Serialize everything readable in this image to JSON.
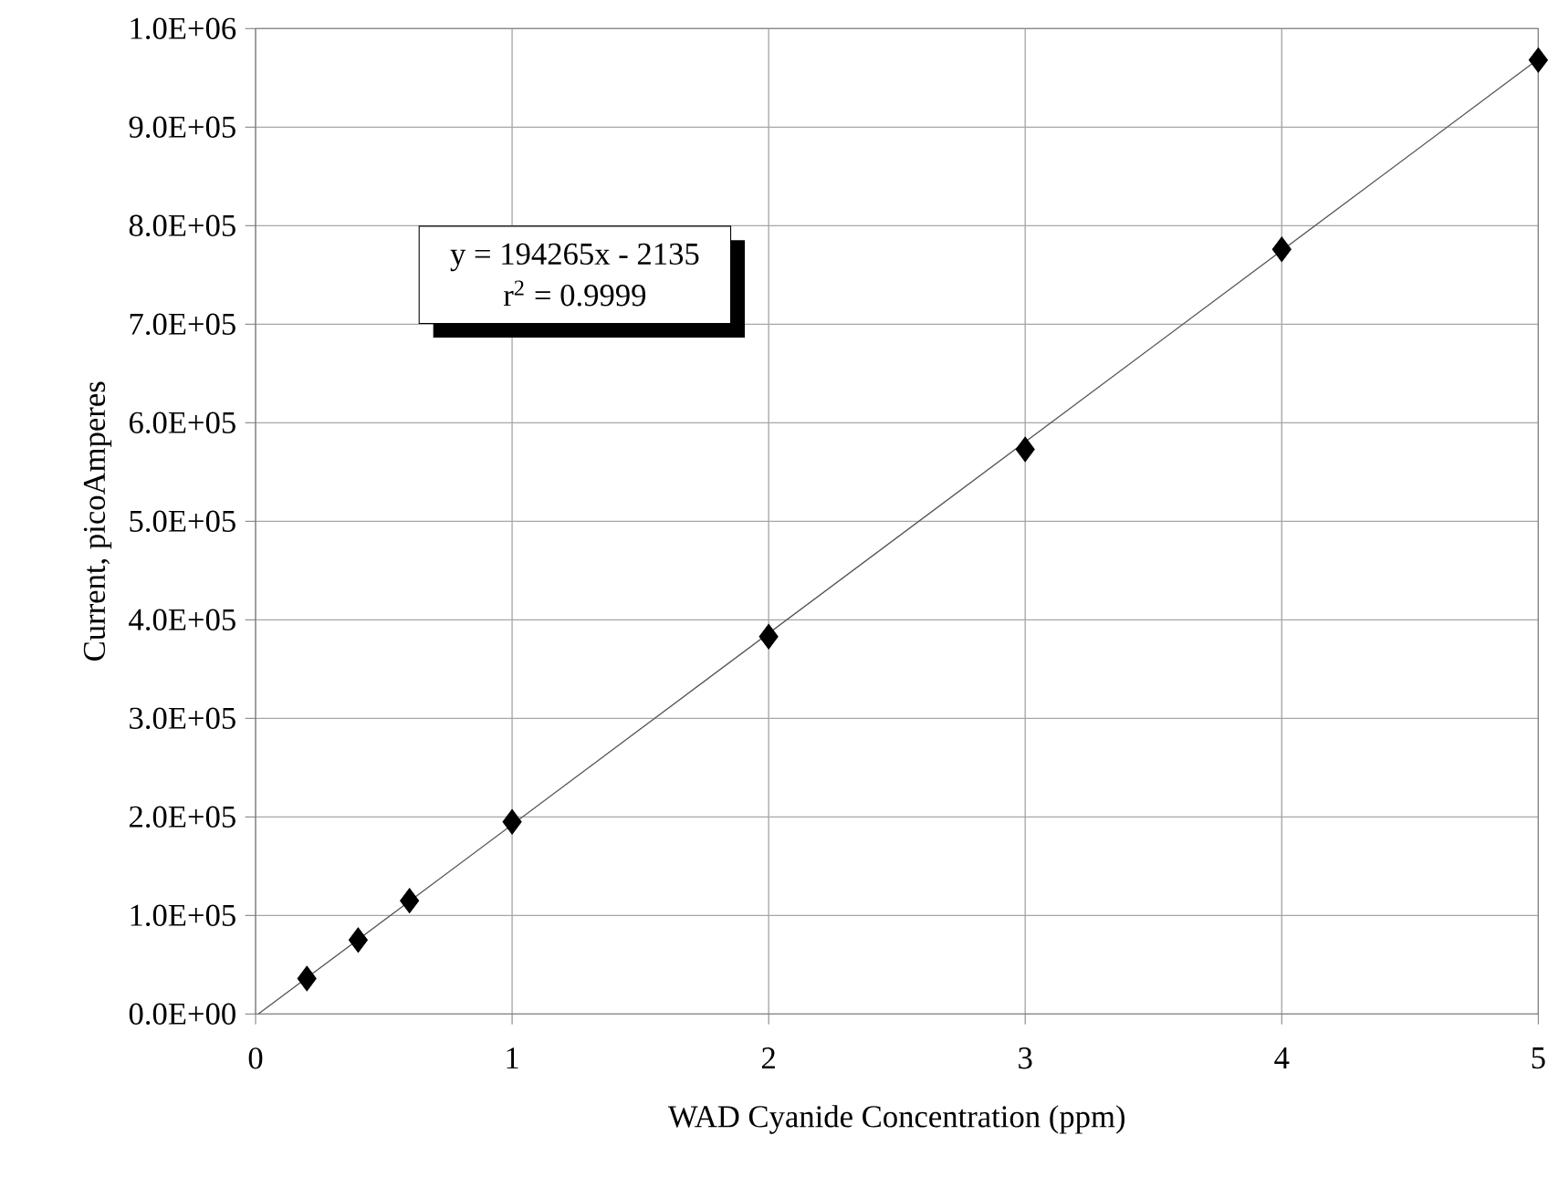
{
  "chart_data": {
    "type": "scatter",
    "xlabel": "WAD Cyanide Concentration (ppm)",
    "ylabel": "Current, picoAmperes",
    "x": [
      0.2,
      0.4,
      0.6,
      1,
      2,
      3,
      4,
      5
    ],
    "series": [
      {
        "type": "scatter",
        "color": "#000000",
        "values": [
          36000,
          75000,
          115000,
          195000,
          383000,
          573000,
          776000,
          968000
        ]
      },
      {
        "type": "line",
        "color": "#555555",
        "x": [
          0.011,
          5
        ],
        "values": [
          0,
          969000
        ]
      }
    ],
    "annotations": [
      "y = 194265x - 2135",
      "r$^{2}$ = 0.9999"
    ],
    "xlim": [
      0,
      5
    ],
    "xticks": [
      0,
      1,
      2,
      3,
      4,
      5
    ],
    "ylim": [
      0,
      1000000
    ],
    "yticks": [
      {
        "value": 0,
        "label": "0.0E+00"
      },
      {
        "value": 100000,
        "label": "1.0E+05"
      },
      {
        "value": 200000,
        "label": "2.0E+05"
      },
      {
        "value": 300000,
        "label": "3.0E+05"
      },
      {
        "value": 400000,
        "label": "4.0E+05"
      },
      {
        "value": 500000,
        "label": "5.0E+05"
      },
      {
        "value": 600000,
        "label": "6.0E+05"
      },
      {
        "value": 700000,
        "label": "7.0E+05"
      },
      {
        "value": 800000,
        "label": "8.0E+05"
      },
      {
        "value": 900000,
        "label": "9.0E+05"
      },
      {
        "value": 1000000,
        "label": "1.0E+06"
      }
    ],
    "grid": true,
    "marker": "diamond",
    "line_style": "solid"
  }
}
